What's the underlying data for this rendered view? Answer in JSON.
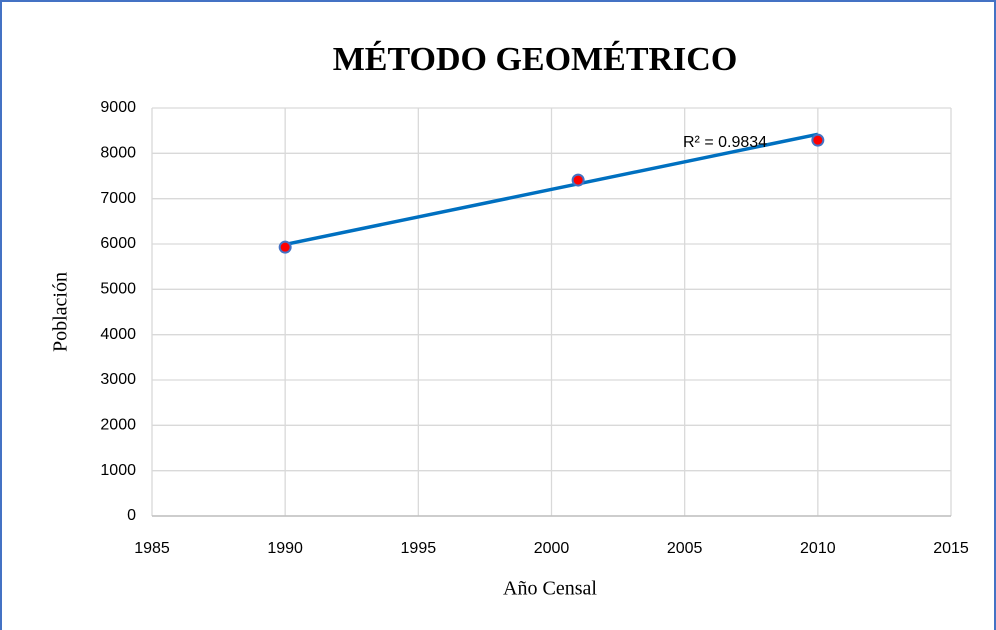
{
  "chart_data": {
    "type": "scatter",
    "title": "MÉTODO GEOMÉTRICO",
    "x_label": "Año Censal",
    "y_label": "Población",
    "x": [
      1990,
      2001,
      2010
    ],
    "values": [
      5930,
      7410,
      8290
    ],
    "color": "#ff0000",
    "edge_color": "#4472c4",
    "trendline": {
      "x": [
        1990,
        2010
      ],
      "values": [
        5990,
        8420
      ],
      "color": "#0070c0",
      "label": "R² = 0.9834"
    },
    "xlim": [
      1985,
      2015
    ],
    "xticks": [
      1985,
      1990,
      1995,
      2000,
      2005,
      2010,
      2015
    ],
    "ylim": [
      0,
      9000
    ],
    "yticks": [
      0,
      1000,
      2000,
      3000,
      4000,
      5000,
      6000,
      7000,
      8000,
      9000
    ],
    "grid": true
  }
}
